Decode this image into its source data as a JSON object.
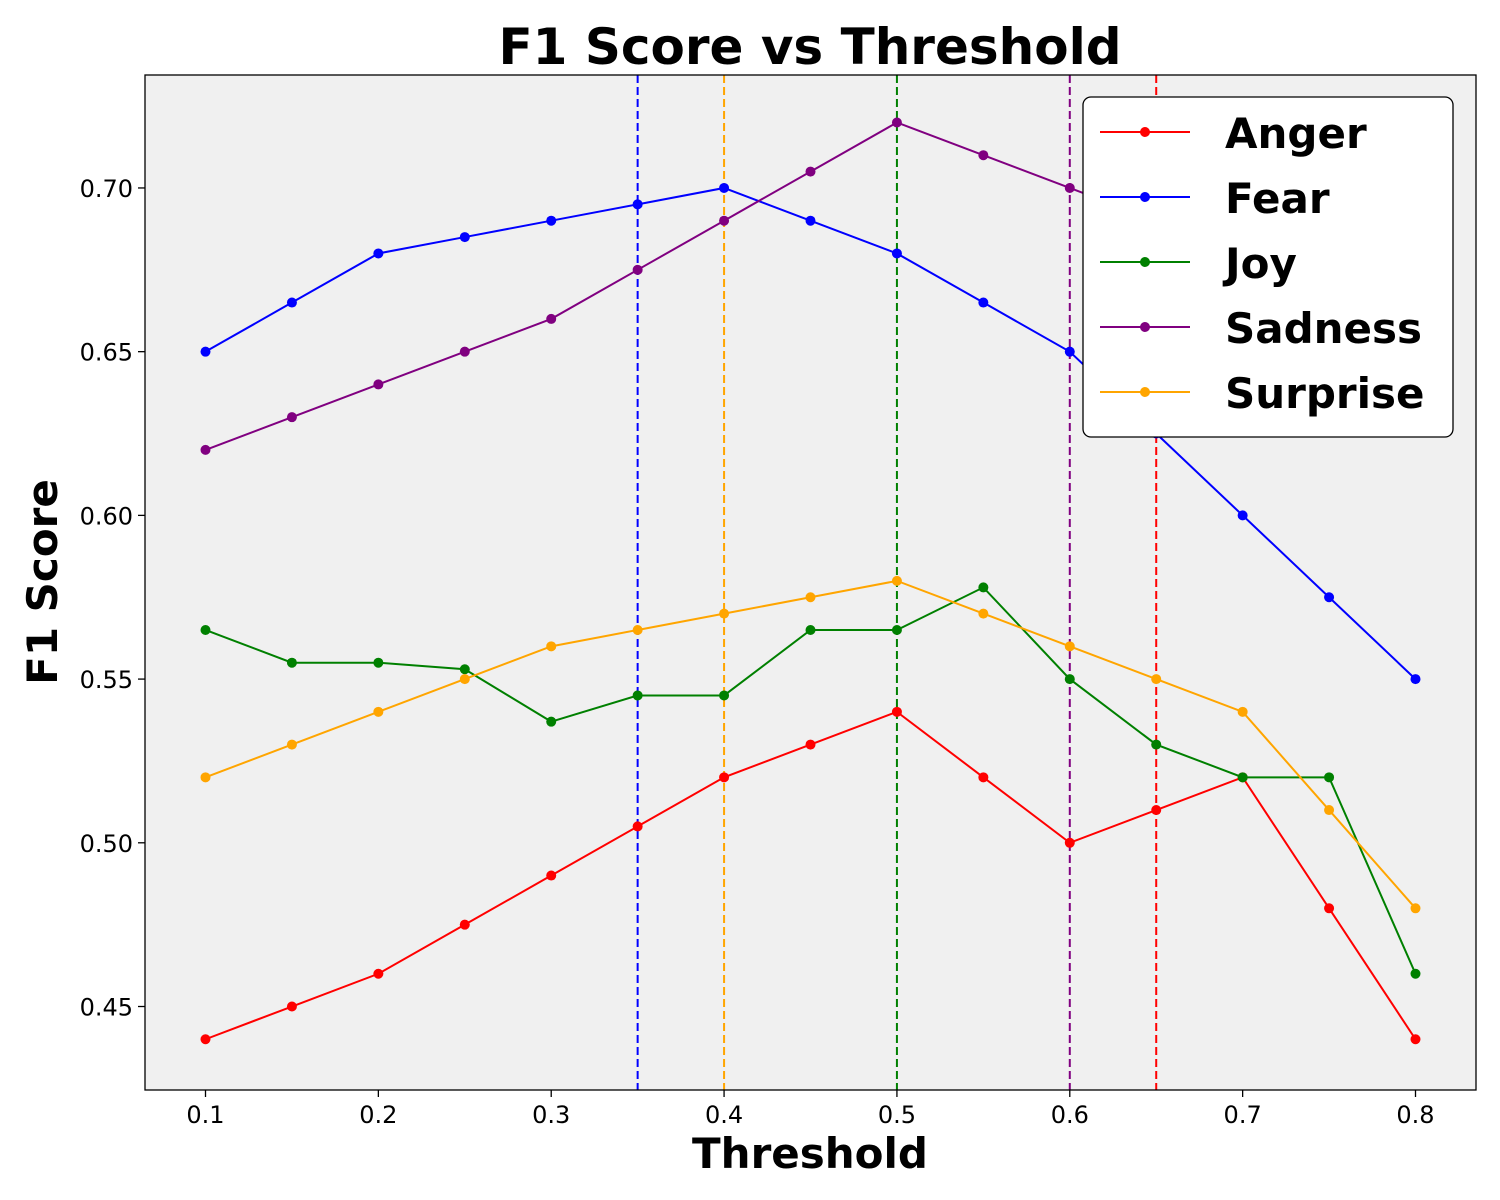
{
  "chart_data": {
    "type": "line",
    "title": "F1 Score vs Threshold",
    "xlabel": "Threshold",
    "ylabel": "F1 Score",
    "x": [
      0.1,
      0.15,
      0.2,
      0.25,
      0.3,
      0.35,
      0.4,
      0.45,
      0.5,
      0.55,
      0.6,
      0.65,
      0.7,
      0.75,
      0.8
    ],
    "xlim": [
      0.065,
      0.835
    ],
    "ylim": [
      0.4245,
      0.7345
    ],
    "xticks": [
      0.1,
      0.2,
      0.3,
      0.4,
      0.5,
      0.6,
      0.7,
      0.8
    ],
    "xtick_labels": [
      "0.1",
      "0.2",
      "0.3",
      "0.4",
      "0.5",
      "0.6",
      "0.7",
      "0.8"
    ],
    "yticks": [
      0.45,
      0.5,
      0.55,
      0.6,
      0.65,
      0.7
    ],
    "ytick_labels": [
      "0.45",
      "0.50",
      "0.55",
      "0.60",
      "0.65",
      "0.70"
    ],
    "grid": false,
    "background": "#f0f0f0",
    "legend_position": "top-right",
    "series": [
      {
        "name": "Anger",
        "color": "#ff0000",
        "values": [
          0.44,
          0.45,
          0.46,
          0.475,
          0.49,
          0.505,
          0.52,
          0.53,
          0.54,
          0.52,
          0.5,
          0.51,
          0.52,
          0.48,
          0.44
        ]
      },
      {
        "name": "Fear",
        "color": "#0000ff",
        "values": [
          0.65,
          0.665,
          0.68,
          0.685,
          0.69,
          0.695,
          0.7,
          0.69,
          0.68,
          0.665,
          0.65,
          0.625,
          0.6,
          0.575,
          0.55
        ]
      },
      {
        "name": "Joy",
        "color": "#008000",
        "values": [
          0.565,
          0.555,
          0.555,
          0.553,
          0.537,
          0.545,
          0.545,
          0.565,
          0.565,
          0.578,
          0.55,
          0.53,
          0.52,
          0.52,
          0.46
        ]
      },
      {
        "name": "Sadness",
        "color": "#800080",
        "values": [
          0.62,
          0.63,
          0.64,
          0.65,
          0.66,
          0.675,
          0.69,
          0.705,
          0.72,
          0.71,
          0.7,
          0.69,
          0.67,
          0.65,
          0.64
        ]
      },
      {
        "name": "Surprise",
        "color": "#ffa500",
        "values": [
          0.52,
          0.53,
          0.54,
          0.55,
          0.56,
          0.565,
          0.57,
          0.575,
          0.58,
          0.57,
          0.56,
          0.55,
          0.54,
          0.51,
          0.48
        ]
      }
    ],
    "vertical_lines": [
      {
        "x": 0.35,
        "color": "#0000ff",
        "style": "dashed"
      },
      {
        "x": 0.4,
        "color": "#ffa500",
        "style": "dashed"
      },
      {
        "x": 0.5,
        "color": "#008000",
        "style": "dashed"
      },
      {
        "x": 0.6,
        "color": "#800080",
        "style": "dashed"
      },
      {
        "x": 0.65,
        "color": "#ff0000",
        "style": "dashed"
      }
    ]
  }
}
